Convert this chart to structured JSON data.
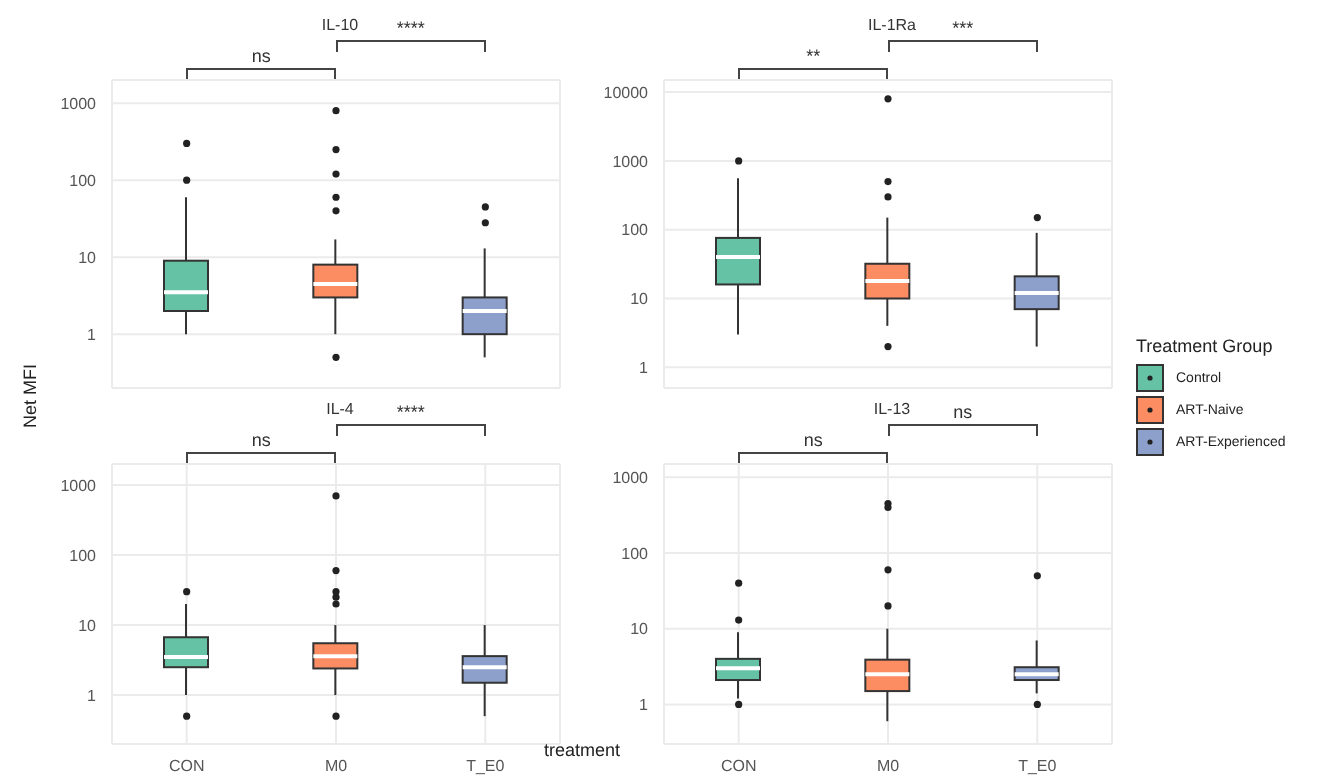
{
  "chart_data": [
    {
      "type": "box",
      "title": "IL-10",
      "ylabel": "Net MFI",
      "categories": [
        null,
        null,
        null
      ],
      "log": "y",
      "ylim": [
        0.2,
        2000
      ],
      "yticks": [
        1,
        10,
        100,
        1000
      ],
      "grid": true,
      "tick_labels": "y",
      "annotations": [
        "ns",
        "****"
      ],
      "series": [
        {
          "color": "#66c2a5",
          "boxes": [
            {
              "low": 1,
              "q1": 2,
              "median": 3.5,
              "q3": 9,
              "high": 60,
              "outliers": [
                100,
                300
              ]
            },
            null,
            null
          ]
        },
        {
          "color": "#fc8d62",
          "boxes": [
            null,
            {
              "low": 1,
              "q1": 3,
              "median": 4.5,
              "q3": 8,
              "high": 17,
              "outliers": [
                0.5,
                40,
                60,
                120,
                250,
                800
              ]
            },
            null
          ]
        },
        {
          "color": "#8da0cb",
          "boxes": [
            null,
            null,
            {
              "low": 0.5,
              "q1": 1,
              "median": 2,
              "q3": 3,
              "high": 13,
              "outliers": [
                28,
                45
              ]
            }
          ]
        }
      ]
    },
    {
      "type": "box",
      "title": "IL-1Ra",
      "categories": [
        null,
        null,
        null
      ],
      "log": "y",
      "ylim": [
        0.5,
        15000
      ],
      "yticks": [
        1,
        10,
        100,
        1000,
        10000
      ],
      "grid": true,
      "tick_labels": "y",
      "annotations": [
        "**",
        "***"
      ],
      "legend": "right",
      "legend_title": "Treatment Group",
      "series": [
        {
          "name": "Control",
          "color": "#66c2a5",
          "boxes": [
            {
              "low": 3,
              "q1": 16,
              "median": 40,
              "q3": 76,
              "high": 560,
              "outliers": [
                1000
              ]
            },
            null,
            null
          ]
        },
        {
          "name": "ART-Naive",
          "color": "#fc8d62",
          "boxes": [
            null,
            {
              "low": 4,
              "q1": 10,
              "median": 18,
              "q3": 32,
              "high": 150,
              "outliers": [
                2,
                300,
                500,
                8000
              ]
            },
            null
          ]
        },
        {
          "name": "ART-Experienced",
          "color": "#8da0cb",
          "boxes": [
            null,
            null,
            {
              "low": 2,
              "q1": 7,
              "median": 12,
              "q3": 21,
              "high": 90,
              "outliers": [
                150
              ]
            }
          ]
        }
      ]
    },
    {
      "type": "box",
      "title": "IL-4",
      "xlabel": "treatment",
      "categories": [
        "CON",
        "M0",
        "T_E0"
      ],
      "log": "y",
      "ylim": [
        0.2,
        2000
      ],
      "yticks": [
        1,
        10,
        100,
        1000
      ],
      "grid": true,
      "annotations": [
        "ns",
        "****"
      ],
      "series": [
        {
          "color": "#66c2a5",
          "boxes": [
            {
              "low": 1,
              "q1": 2.5,
              "median": 3.5,
              "q3": 6.7,
              "high": 20,
              "outliers": [
                0.5,
                30
              ]
            },
            null,
            null
          ]
        },
        {
          "color": "#fc8d62",
          "boxes": [
            null,
            {
              "low": 1,
              "q1": 2.4,
              "median": 3.6,
              "q3": 5.5,
              "high": 10,
              "outliers": [
                0.5,
                20,
                25,
                30,
                60,
                700
              ]
            },
            null
          ]
        },
        {
          "color": "#8da0cb",
          "boxes": [
            null,
            null,
            {
              "low": 0.5,
              "q1": 1.5,
              "median": 2.5,
              "q3": 3.6,
              "high": 10
            }
          ]
        }
      ]
    },
    {
      "type": "box",
      "title": "IL-13",
      "categories": [
        "CON",
        "M0",
        "T_E0"
      ],
      "log": "y",
      "ylim": [
        0.3,
        1500
      ],
      "yticks": [
        1,
        10,
        100,
        1000
      ],
      "grid": true,
      "annotations": [
        "ns",
        "ns"
      ],
      "series": [
        {
          "color": "#66c2a5",
          "boxes": [
            {
              "low": 1.2,
              "q1": 2.1,
              "median": 3,
              "q3": 4,
              "high": 9,
              "outliers": [
                1,
                13,
                40
              ]
            },
            null,
            null
          ]
        },
        {
          "color": "#fc8d62",
          "boxes": [
            null,
            {
              "low": 0.6,
              "q1": 1.5,
              "median": 2.5,
              "q3": 3.9,
              "high": 10,
              "outliers": [
                20,
                60,
                400,
                450
              ]
            },
            null
          ]
        },
        {
          "color": "#8da0cb",
          "boxes": [
            null,
            null,
            {
              "low": 1.4,
              "q1": 2.1,
              "median": 2.5,
              "q3": 3.1,
              "high": 7,
              "outliers": [
                1,
                50
              ]
            }
          ]
        }
      ]
    }
  ]
}
